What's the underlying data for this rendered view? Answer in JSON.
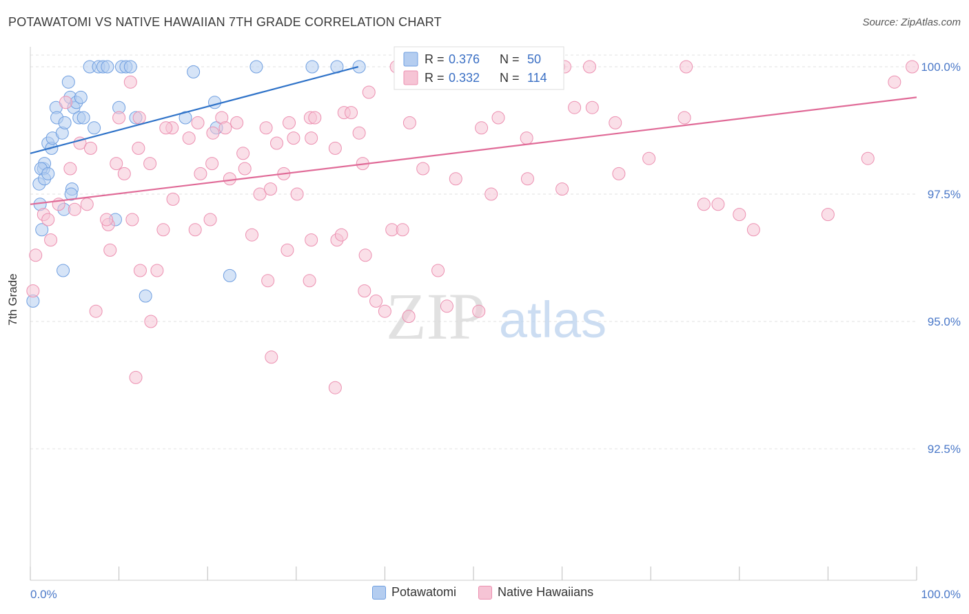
{
  "chart_data": {
    "type": "scatter",
    "title": "POTAWATOMI VS NATIVE HAWAIIAN 7TH GRADE CORRELATION CHART",
    "source": "Source: ZipAtlas.com",
    "ylabel": "7th Grade",
    "xlim": [
      0,
      100
    ],
    "ylim": [
      90,
      100.35
    ],
    "x_tick_labels": [
      "0.0%",
      "100.0%"
    ],
    "y_ticks": [
      {
        "value": 100.0,
        "label": "100.0%"
      },
      {
        "value": 97.5,
        "label": "97.5%"
      },
      {
        "value": 95.0,
        "label": "95.0%"
      },
      {
        "value": 92.5,
        "label": "92.5%"
      }
    ],
    "grid": true,
    "legend_position": "bottom",
    "stats": [
      {
        "r_label": "R = ",
        "r_value": "0.376",
        "n_label": "N = ",
        "n_value": "50"
      },
      {
        "r_label": "R = ",
        "r_value": "0.332",
        "n_label": "N = ",
        "n_value": "114"
      }
    ],
    "watermark": {
      "zip": "ZIP",
      "atlas": "atlas"
    },
    "series": [
      {
        "name": "Potawatomi",
        "color": "#6e9ee0",
        "fill": "#b4cdf0",
        "line_color": "#2e72c8",
        "trend": {
          "x0": 0,
          "y0": 98.3,
          "x1": 37,
          "y1": 100.0
        },
        "points": [
          [
            6.7,
            100
          ],
          [
            7.7,
            100
          ],
          [
            8.2,
            100
          ],
          [
            8.7,
            100
          ],
          [
            10.3,
            100
          ],
          [
            10.8,
            100
          ],
          [
            11.3,
            100
          ],
          [
            25.5,
            100
          ],
          [
            31.8,
            100
          ],
          [
            34.6,
            100
          ],
          [
            37.1,
            100
          ],
          [
            1.0,
            97.7
          ],
          [
            1.5,
            98.0
          ],
          [
            1.6,
            98.1
          ],
          [
            1.2,
            98.0
          ],
          [
            2.0,
            98.5
          ],
          [
            2.4,
            98.4
          ],
          [
            2.5,
            98.6
          ],
          [
            2.9,
            99.2
          ],
          [
            3.0,
            99.0
          ],
          [
            3.6,
            98.7
          ],
          [
            3.9,
            98.9
          ],
          [
            4.3,
            99.7
          ],
          [
            4.5,
            99.4
          ],
          [
            4.7,
            97.6
          ],
          [
            4.9,
            99.2
          ],
          [
            5.2,
            99.3
          ],
          [
            5.5,
            99.0
          ],
          [
            5.7,
            99.4
          ],
          [
            6.0,
            99.0
          ],
          [
            7.2,
            98.8
          ],
          [
            10.0,
            99.2
          ],
          [
            11.9,
            99.0
          ],
          [
            17.5,
            99.0
          ],
          [
            18.4,
            99.9
          ],
          [
            20.8,
            99.3
          ],
          [
            21.0,
            98.8
          ],
          [
            1.1,
            97.3
          ],
          [
            1.3,
            96.8
          ],
          [
            3.8,
            97.2
          ],
          [
            4.6,
            97.5
          ],
          [
            9.6,
            97.0
          ],
          [
            3.7,
            96.0
          ],
          [
            13.0,
            95.5
          ],
          [
            22.5,
            95.9
          ],
          [
            0.3,
            95.4
          ],
          [
            1.6,
            97.8
          ],
          [
            2.0,
            97.9
          ]
        ]
      },
      {
        "name": "Native Hawaiians",
        "color": "#ec8fb0",
        "fill": "#f6c4d5",
        "line_color": "#e06a97",
        "trend": {
          "x0": 0,
          "y0": 97.3,
          "x1": 100,
          "y1": 99.4
        },
        "points": [
          [
            41.3,
            100
          ],
          [
            45.3,
            100
          ],
          [
            48.0,
            100
          ],
          [
            58.2,
            100
          ],
          [
            59.6,
            100
          ],
          [
            60.3,
            100
          ],
          [
            63.1,
            100
          ],
          [
            74.0,
            100
          ],
          [
            99.5,
            100
          ],
          [
            38.2,
            99.5
          ],
          [
            56.5,
            99.7
          ],
          [
            11.3,
            99.7
          ],
          [
            4.0,
            99.3
          ],
          [
            10.0,
            99.0
          ],
          [
            12.3,
            99.0
          ],
          [
            16.0,
            98.8
          ],
          [
            18.9,
            98.9
          ],
          [
            21.6,
            99.0
          ],
          [
            22.0,
            98.8
          ],
          [
            23.3,
            98.9
          ],
          [
            26.6,
            98.8
          ],
          [
            29.2,
            98.9
          ],
          [
            31.6,
            99.0
          ],
          [
            32.1,
            99.0
          ],
          [
            35.4,
            99.1
          ],
          [
            36.2,
            99.1
          ],
          [
            37.1,
            98.7
          ],
          [
            42.8,
            98.9
          ],
          [
            50.9,
            98.8
          ],
          [
            52.8,
            99.0
          ],
          [
            61.4,
            99.2
          ],
          [
            63.4,
            99.2
          ],
          [
            66.0,
            98.9
          ],
          [
            73.8,
            99.0
          ],
          [
            56.0,
            98.6
          ],
          [
            15.3,
            98.8
          ],
          [
            20.6,
            98.7
          ],
          [
            24.0,
            98.3
          ],
          [
            27.8,
            98.5
          ],
          [
            29.7,
            98.6
          ],
          [
            31.7,
            98.6
          ],
          [
            34.4,
            98.4
          ],
          [
            12.2,
            98.4
          ],
          [
            17.9,
            98.6
          ],
          [
            5.6,
            98.5
          ],
          [
            6.8,
            98.4
          ],
          [
            9.7,
            98.1
          ],
          [
            13.5,
            98.1
          ],
          [
            19.2,
            97.9
          ],
          [
            22.5,
            97.8
          ],
          [
            24.2,
            98.0
          ],
          [
            25.9,
            97.5
          ],
          [
            27.1,
            97.6
          ],
          [
            28.6,
            97.9
          ],
          [
            30.1,
            97.5
          ],
          [
            37.5,
            98.1
          ],
          [
            44.3,
            98.0
          ],
          [
            48.0,
            97.8
          ],
          [
            52.0,
            97.5
          ],
          [
            56.1,
            97.8
          ],
          [
            60.0,
            97.6
          ],
          [
            66.4,
            97.9
          ],
          [
            69.8,
            98.2
          ],
          [
            76.0,
            97.3
          ],
          [
            77.6,
            97.3
          ],
          [
            80.0,
            97.1
          ],
          [
            81.6,
            96.8
          ],
          [
            90.0,
            97.1
          ],
          [
            94.5,
            98.2
          ],
          [
            97.5,
            99.7
          ],
          [
            1.5,
            97.1
          ],
          [
            2.0,
            97.0
          ],
          [
            3.2,
            97.3
          ],
          [
            5.0,
            97.2
          ],
          [
            6.4,
            97.3
          ],
          [
            8.8,
            96.9
          ],
          [
            11.5,
            97.0
          ],
          [
            15.0,
            96.8
          ],
          [
            18.6,
            96.8
          ],
          [
            20.3,
            97.0
          ],
          [
            25.0,
            96.7
          ],
          [
            29.0,
            96.4
          ],
          [
            31.7,
            96.6
          ],
          [
            34.6,
            96.6
          ],
          [
            35.1,
            96.7
          ],
          [
            37.8,
            96.3
          ],
          [
            40.8,
            96.8
          ],
          [
            42.0,
            96.8
          ],
          [
            0.6,
            96.3
          ],
          [
            2.3,
            96.6
          ],
          [
            9.0,
            96.4
          ],
          [
            12.4,
            96.0
          ],
          [
            14.3,
            96.0
          ],
          [
            26.8,
            95.8
          ],
          [
            31.5,
            95.8
          ],
          [
            37.7,
            95.6
          ],
          [
            39.0,
            95.4
          ],
          [
            40.0,
            95.2
          ],
          [
            42.7,
            95.1
          ],
          [
            46.0,
            96.0
          ],
          [
            47.0,
            95.3
          ],
          [
            50.6,
            95.2
          ],
          [
            7.4,
            95.2
          ],
          [
            13.6,
            95.0
          ],
          [
            11.9,
            93.9
          ],
          [
            27.2,
            94.3
          ],
          [
            34.4,
            93.7
          ],
          [
            0.3,
            95.6
          ],
          [
            8.6,
            97.0
          ],
          [
            16.1,
            97.4
          ],
          [
            20.5,
            98.1
          ],
          [
            10.6,
            97.9
          ],
          [
            4.5,
            98.0
          ]
        ]
      }
    ]
  }
}
